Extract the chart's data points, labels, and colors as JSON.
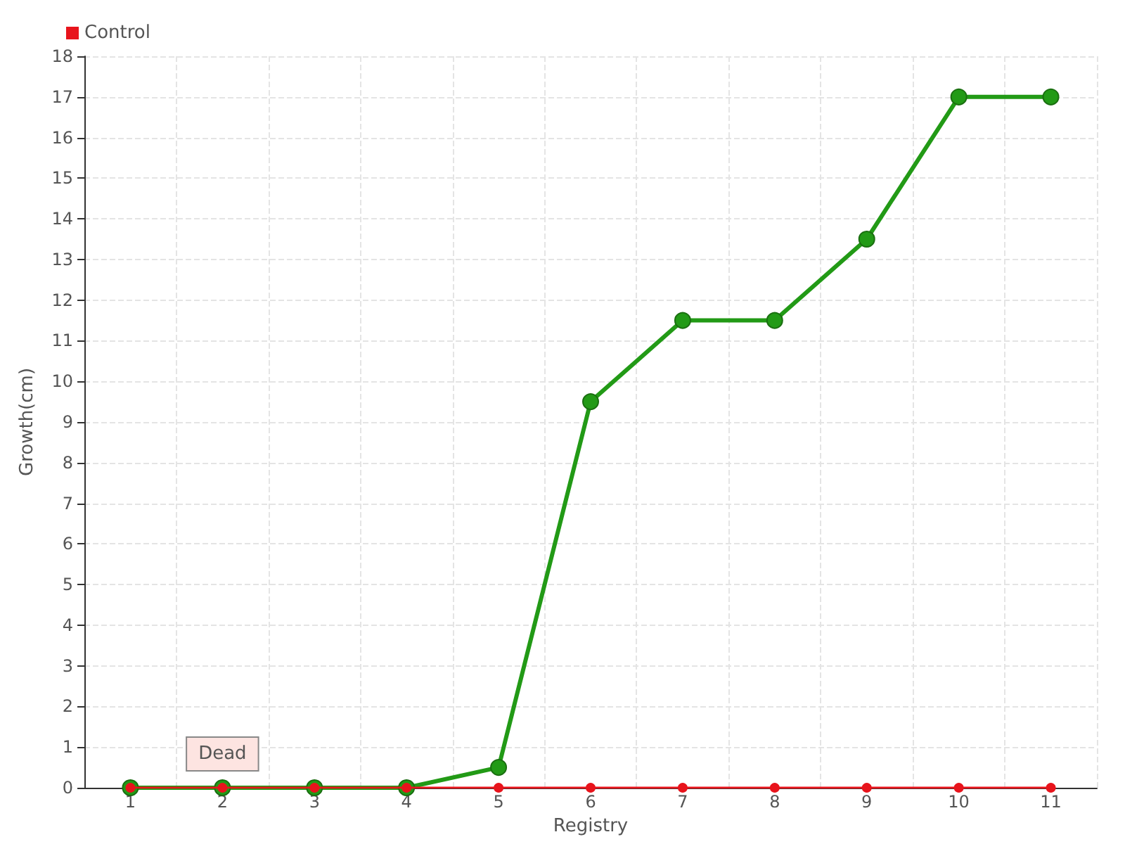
{
  "chart_data": {
    "type": "line",
    "xlabel": "Registry",
    "ylabel": "Growth(cm)",
    "categories": [
      "1",
      "2",
      "3",
      "4",
      "5",
      "6",
      "7",
      "8",
      "9",
      "10",
      "11"
    ],
    "series": [
      {
        "color": "#229a16",
        "values": [
          0,
          0,
          0,
          0,
          0.5,
          9.5,
          11.5,
          11.5,
          13.5,
          17,
          17
        ]
      },
      {
        "name": "Control",
        "color": "#e8141c",
        "values": [
          0,
          0,
          0,
          0,
          0,
          0,
          0,
          0,
          0,
          0,
          0
        ]
      }
    ],
    "ylim": [
      0,
      18
    ],
    "yticks": [
      0,
      1,
      2,
      3,
      4,
      5,
      6,
      7,
      8,
      9,
      10,
      11,
      12,
      13,
      14,
      15,
      16,
      17,
      18
    ],
    "annotations": [
      {
        "text": "Dead",
        "x": "2",
        "y": 0
      }
    ],
    "grid": true,
    "legend": "top left",
    "marker": "circle",
    "line_style": "solid"
  }
}
